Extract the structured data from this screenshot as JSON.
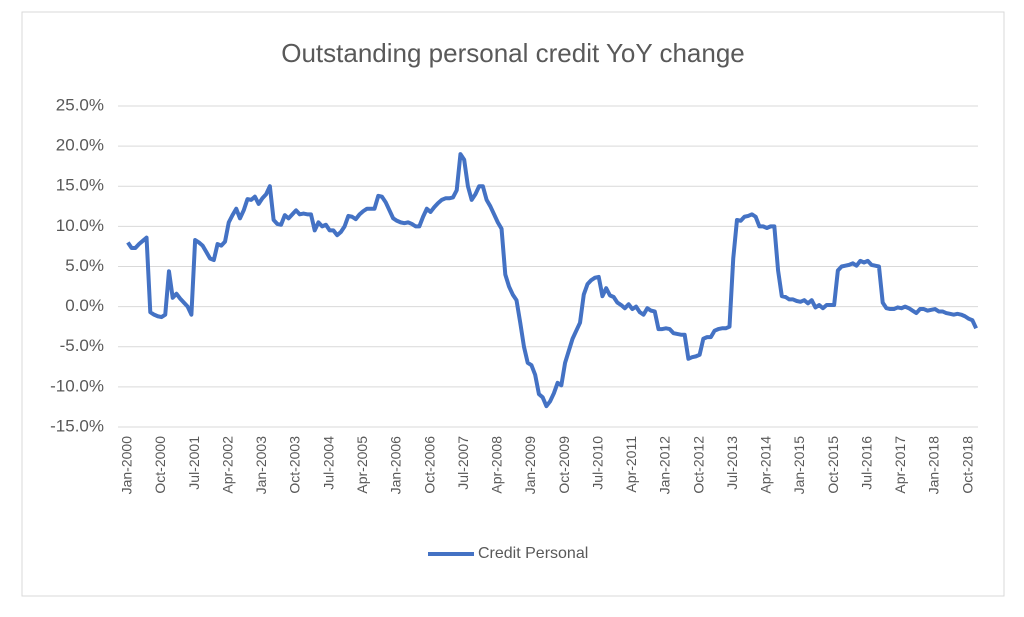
{
  "chart_data": {
    "type": "line",
    "title": "Outstanding personal credit YoY change",
    "categories": [
      "Jan-2000",
      null,
      null,
      null,
      null,
      null,
      null,
      null,
      null,
      "Oct-2000",
      null,
      null,
      null,
      null,
      null,
      null,
      null,
      null,
      "Jul-2001",
      null,
      null,
      null,
      null,
      null,
      null,
      null,
      null,
      "Apr-2002",
      null,
      null,
      null,
      null,
      null,
      null,
      null,
      null,
      "Jan-2003",
      null,
      null,
      null,
      null,
      null,
      null,
      null,
      null,
      "Oct-2003",
      null,
      null,
      null,
      null,
      null,
      null,
      null,
      null,
      "Jul-2004",
      null,
      null,
      null,
      null,
      null,
      null,
      null,
      null,
      "Apr-2005",
      null,
      null,
      null,
      null,
      null,
      null,
      null,
      null,
      "Jan-2006",
      null,
      null,
      null,
      null,
      null,
      null,
      null,
      null,
      "Oct-2006",
      null,
      null,
      null,
      null,
      null,
      null,
      null,
      null,
      "Jul-2007",
      null,
      null,
      null,
      null,
      null,
      null,
      null,
      null,
      "Apr-2008",
      null,
      null,
      null,
      null,
      null,
      null,
      null,
      null,
      "Jan-2009",
      null,
      null,
      null,
      null,
      null,
      null,
      null,
      null,
      "Oct-2009",
      null,
      null,
      null,
      null,
      null,
      null,
      null,
      null,
      "Jul-2010",
      null,
      null,
      null,
      null,
      null,
      null,
      null,
      null,
      "Apr-2011",
      null,
      null,
      null,
      null,
      null,
      null,
      null,
      null,
      "Jan-2012",
      null,
      null,
      null,
      null,
      null,
      null,
      null,
      null,
      "Oct-2012",
      null,
      null,
      null,
      null,
      null,
      null,
      null,
      null,
      "Jul-2013",
      null,
      null,
      null,
      null,
      null,
      null,
      null,
      null,
      "Apr-2014",
      null,
      null,
      null,
      null,
      null,
      null,
      null,
      null,
      "Jan-2015",
      null,
      null,
      null,
      null,
      null,
      null,
      null,
      null,
      "Oct-2015",
      null,
      null,
      null,
      null,
      null,
      null,
      null,
      null,
      "Jul-2016",
      null,
      null,
      null,
      null,
      null,
      null,
      null,
      null,
      "Apr-2017",
      null,
      null,
      null,
      null,
      null,
      null,
      null,
      null,
      "Jan-2018",
      null,
      null,
      null,
      null,
      null,
      null,
      null,
      null,
      "Oct-2018",
      null,
      null
    ],
    "series": [
      {
        "name": "Credit Personal",
        "color": "#4472c4",
        "values": [
          8.0,
          7.3,
          7.3,
          7.8,
          8.2,
          8.6,
          -0.7,
          -1.0,
          -1.2,
          -1.3,
          -1.0,
          4.4,
          1.1,
          1.6,
          1.0,
          0.5,
          0.0,
          -1.0,
          8.3,
          8.0,
          7.6,
          6.8,
          6.0,
          5.8,
          7.8,
          7.6,
          8.1,
          10.5,
          11.4,
          12.2,
          11.0,
          12.0,
          13.4,
          13.3,
          13.7,
          12.8,
          13.5,
          14.0,
          15.0,
          10.8,
          10.3,
          10.2,
          11.4,
          11.0,
          11.5,
          12.0,
          11.5,
          11.6,
          11.5,
          11.5,
          9.5,
          10.5,
          10.0,
          10.2,
          9.5,
          9.5,
          8.9,
          9.3,
          10.0,
          11.3,
          11.2,
          10.9,
          11.5,
          11.9,
          12.2,
          12.2,
          12.2,
          13.8,
          13.7,
          13.0,
          12.0,
          11.0,
          10.7,
          10.5,
          10.4,
          10.5,
          10.3,
          10.0,
          10.0,
          11.2,
          12.2,
          11.8,
          12.4,
          12.9,
          13.3,
          13.5,
          13.5,
          13.6,
          14.5,
          19.0,
          18.3,
          15.0,
          13.3,
          14.0,
          15.0,
          15.0,
          13.3,
          12.5,
          11.5,
          10.5,
          9.7,
          4.0,
          2.5,
          1.5,
          0.8,
          -2.0,
          -5.0,
          -7.0,
          -7.3,
          -8.5,
          -10.9,
          -11.3,
          -12.4,
          -11.8,
          -10.8,
          -9.5,
          -9.8,
          -7.0,
          -5.5,
          -4.0,
          -3.0,
          -2.0,
          1.5,
          2.8,
          3.3,
          3.6,
          3.7,
          1.3,
          2.3,
          1.4,
          1.2,
          0.5,
          0.2,
          -0.2,
          0.3,
          -0.3,
          0.0,
          -0.7,
          -1.0,
          -0.2,
          -0.5,
          -0.6,
          -2.8,
          -2.8,
          -2.7,
          -2.8,
          -3.3,
          -3.4,
          -3.5,
          -3.5,
          -6.5,
          -6.3,
          -6.2,
          -6.0,
          -4.0,
          -3.8,
          -3.8,
          -3.0,
          -2.8,
          -2.7,
          -2.7,
          -2.5,
          6.0,
          10.8,
          10.7,
          11.2,
          11.3,
          11.5,
          11.2,
          10.0,
          10.0,
          9.8,
          10.0,
          10.0,
          4.5,
          1.3,
          1.2,
          0.9,
          0.9,
          0.7,
          0.6,
          0.8,
          0.4,
          0.8,
          -0.1,
          0.2,
          -0.2,
          0.2,
          0.2,
          0.2,
          4.5,
          5.0,
          5.1,
          5.2,
          5.4,
          5.1,
          5.7,
          5.5,
          5.7,
          5.2,
          5.1,
          5.0,
          0.5,
          -0.2,
          -0.3,
          -0.3,
          -0.1,
          -0.2,
          0.0,
          -0.2,
          -0.5,
          -0.8,
          -0.3,
          -0.3,
          -0.5,
          -0.4,
          -0.3,
          -0.6,
          -0.6,
          -0.8,
          -0.9,
          -1.0,
          -0.9,
          -1.0,
          -1.2,
          -1.5,
          -1.7,
          -2.7
        ]
      }
    ],
    "ylim": [
      -15,
      25
    ],
    "yticks": [
      {
        "value": -15,
        "label": "-15.0%"
      },
      {
        "value": -10,
        "label": "-10.0%"
      },
      {
        "value": -5,
        "label": "-5.0%"
      },
      {
        "value": 0,
        "label": "0.0%"
      },
      {
        "value": 5,
        "label": "5.0%"
      },
      {
        "value": 10,
        "label": "10.0%"
      },
      {
        "value": 15,
        "label": "15.0%"
      },
      {
        "value": 20,
        "label": "20.0%"
      },
      {
        "value": 25,
        "label": "25.0%"
      }
    ],
    "grid": true,
    "legend": "bottom"
  }
}
